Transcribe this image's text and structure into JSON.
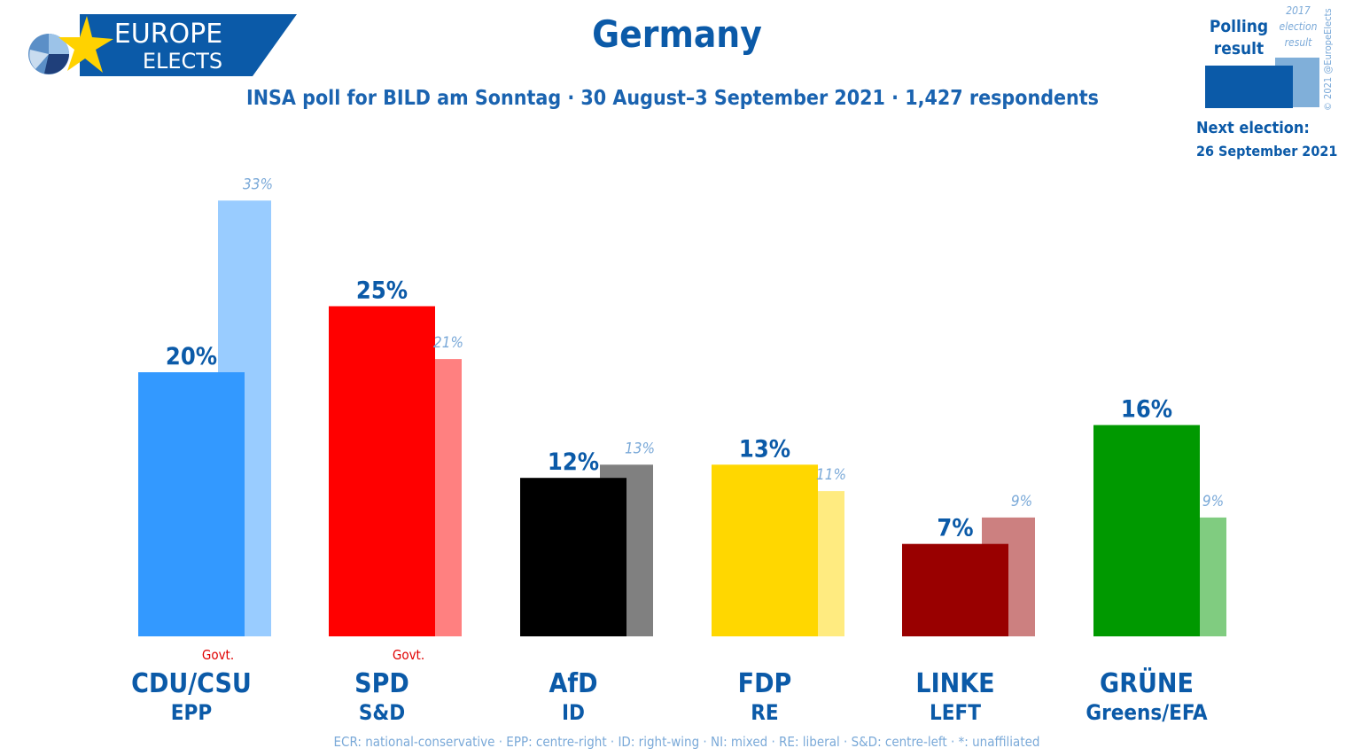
{
  "header": {
    "logo_line1": "EUROPE",
    "logo_line2": "ELECTS",
    "title": "Germany",
    "subtitle": "INSA poll for BILD am Sonntag · 30 August–3 September 2021 · 1,427 respondents"
  },
  "legend": {
    "poll_label": "Polling result",
    "prev_label_1": "2017",
    "prev_label_2": "election",
    "prev_label_3": "result",
    "next_label": "Next election:",
    "next_date": "26 September 2021",
    "copyright": "© 2021 @EuropeElects",
    "poll_color": "#0b5aa8",
    "prev_color": "#80afd9"
  },
  "footer": "ECR: national-conservative · EPP: centre-right · ID: right-wing · NI: mixed · RE: liberal · S&D: centre-left · *: unaffiliated",
  "chart_data": {
    "type": "bar",
    "title": "Germany",
    "categories": [
      "CDU/CSU",
      "SPD",
      "AfD",
      "FDP",
      "LINKE",
      "GRÜNE"
    ],
    "groups": [
      "EPP",
      "S&D",
      "ID",
      "RE",
      "LEFT",
      "Greens/EFA"
    ],
    "govt": [
      true,
      true,
      false,
      false,
      false,
      false
    ],
    "govt_label": "Govt.",
    "series": [
      {
        "name": "Polling result",
        "values": [
          20,
          25,
          12,
          13,
          7,
          16
        ],
        "labels": [
          "20%",
          "25%",
          "12%",
          "13%",
          "7%",
          "16%"
        ],
        "colors": [
          "#3399ff",
          "#ff0000",
          "#000000",
          "#ffd700",
          "#990000",
          "#009900"
        ]
      },
      {
        "name": "2017 election result",
        "values": [
          33,
          21,
          13,
          11,
          9,
          9
        ],
        "labels": [
          "33%",
          "21%",
          "13%",
          "11%",
          "9%",
          "9%"
        ],
        "colors": [
          "#99ccff",
          "#ff8080",
          "#808080",
          "#ffeb80",
          "#cc8080",
          "#80cc80"
        ]
      }
    ],
    "ylim": [
      0,
      35
    ]
  }
}
